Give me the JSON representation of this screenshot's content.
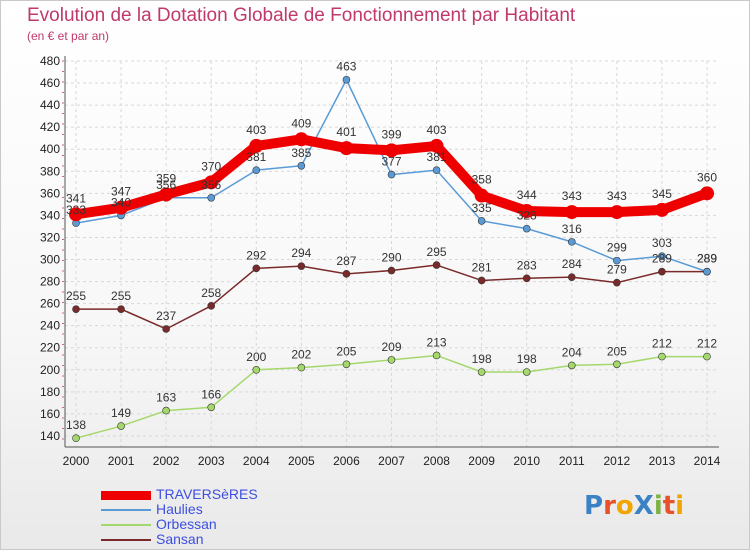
{
  "title": "Evolution de la Dotation Globale de Fonctionnement par Habitant",
  "subtitle": "(en € et par an)",
  "logo": {
    "text": "ProXiti",
    "letters": [
      "P",
      "r",
      "o",
      "X",
      "i",
      "t",
      "i"
    ],
    "colors": [
      "#3b82c4",
      "#e8522a",
      "#f0a500",
      "#3b82c4",
      "#7cb342",
      "#e8522a",
      "#f0a500"
    ]
  },
  "chart_data": {
    "type": "line",
    "x": [
      2000,
      2001,
      2002,
      2003,
      2004,
      2005,
      2006,
      2007,
      2008,
      2009,
      2010,
      2011,
      2012,
      2013,
      2014
    ],
    "ylim": [
      130,
      480
    ],
    "yticks": [
      140,
      160,
      180,
      200,
      220,
      240,
      260,
      280,
      300,
      320,
      340,
      360,
      380,
      400,
      420,
      440,
      460,
      480
    ],
    "grid": true,
    "legend_position": "bottom-left",
    "series": [
      {
        "name": "TRAVERSèRES",
        "color": "#ee0000",
        "values": [
          341,
          347,
          359,
          370,
          403,
          409,
          401,
          399,
          403,
          358,
          344,
          343,
          343,
          345,
          360
        ]
      },
      {
        "name": "Haulies",
        "color": "#5b9bd5",
        "values": [
          333,
          340,
          356,
          356,
          381,
          385,
          463,
          377,
          381,
          335,
          328,
          316,
          299,
          303,
          289
        ]
      },
      {
        "name": "Orbessan",
        "color": "#a5d86c",
        "values": [
          138,
          149,
          163,
          166,
          200,
          202,
          205,
          209,
          213,
          198,
          198,
          204,
          205,
          212,
          212
        ]
      },
      {
        "name": "Sansan",
        "color": "#7a2a2a",
        "values": [
          255,
          255,
          237,
          258,
          292,
          294,
          287,
          290,
          295,
          281,
          283,
          284,
          279,
          289,
          289
        ]
      }
    ]
  }
}
